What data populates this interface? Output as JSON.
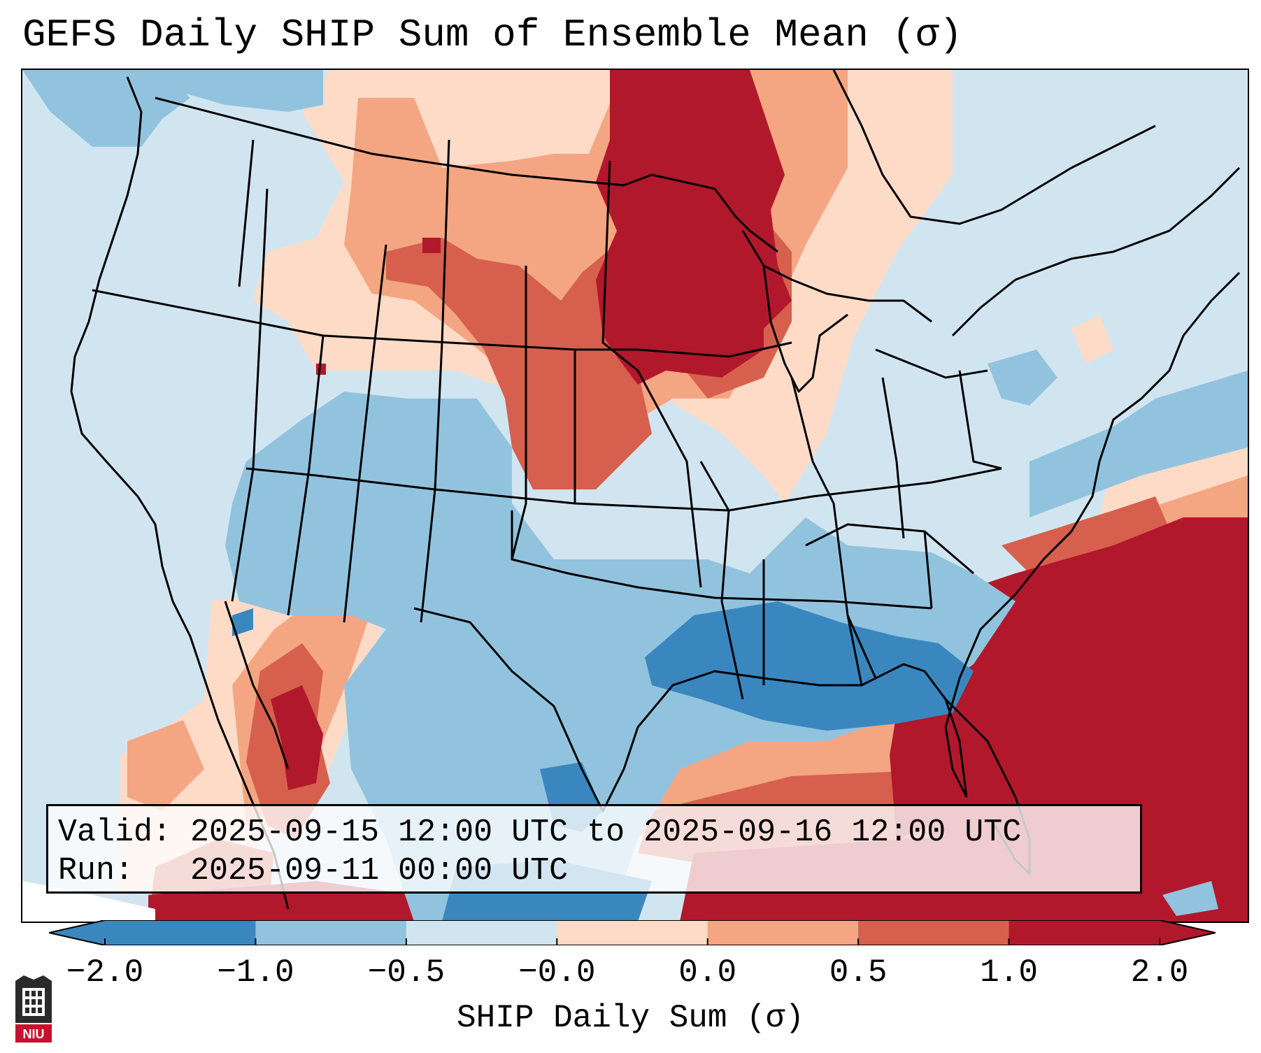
{
  "title": "GEFS Daily SHIP Sum of Ensemble Mean (σ)",
  "info": {
    "valid_label": "Valid:",
    "valid_text": "2025-09-15 12:00 UTC to 2025-09-16 12:00 UTC",
    "run_label": "Run:",
    "run_text": "2025-09-11 00:00 UTC"
  },
  "colorbar": {
    "label": "SHIP Daily Sum (σ)",
    "ticks": [
      "−2.0",
      "−1.0",
      "−0.5",
      "−0.0",
      "0.0",
      "0.5",
      "1.0",
      "2.0"
    ],
    "colors": [
      "#3a87c0",
      "#92c3de",
      "#d1e5f0",
      "#f7f7f7",
      "#fddbc7",
      "#f4a582",
      "#d6604d",
      "#b2182b"
    ],
    "extend": "both"
  },
  "logo": {
    "text": "NIU"
  }
}
